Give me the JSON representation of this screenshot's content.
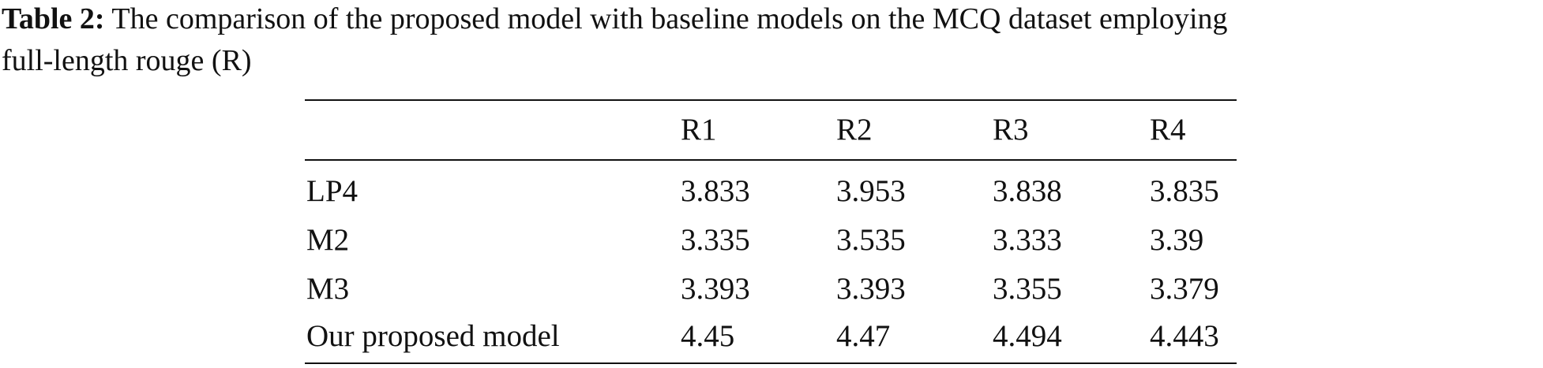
{
  "caption": {
    "label": "Table 2:",
    "text": "The comparison of the proposed model with baseline models on the MCQ dataset employing",
    "text_line2": "full-length rouge (R)"
  },
  "table": {
    "header": [
      "R1",
      "R2",
      "R3",
      "R4"
    ],
    "rows": [
      [
        "LP4",
        3.833,
        3.953,
        3.838,
        3.835
      ],
      [
        "M2",
        3.335,
        3.535,
        3.333,
        3.39
      ],
      [
        "M3",
        3.393,
        3.393,
        3.355,
        3.379
      ],
      [
        "Our proposed model",
        4.45,
        4.47,
        4.494,
        4.443
      ]
    ]
  }
}
